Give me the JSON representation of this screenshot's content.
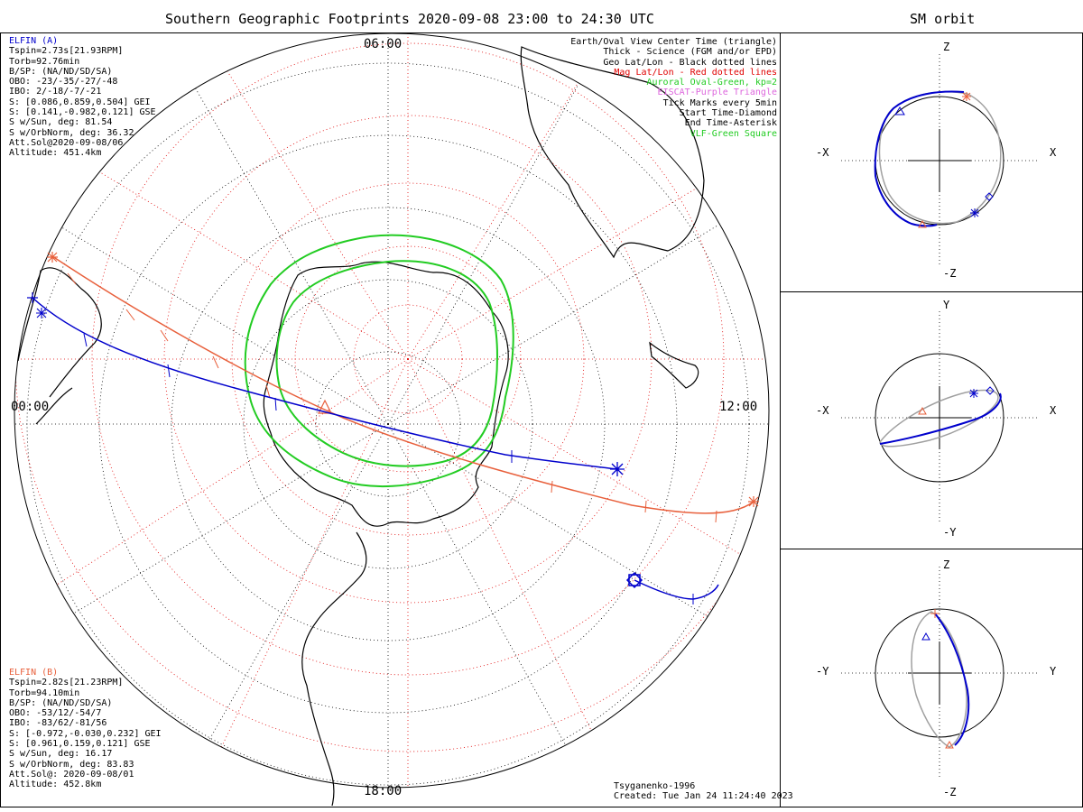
{
  "main_title": "Southern Geographic Footprints 2020-09-08 23:00 to 24:30 UTC",
  "sm_title": "SM orbit",
  "time_labels": {
    "top": "06:00",
    "left": "00:00",
    "right": "12:00",
    "bottom": "18:00"
  },
  "sat_a": {
    "name": "ELFIN (A)",
    "color": "#0000cc",
    "lines": [
      "Tspin=2.73s[21.93RPM]",
      "Torb=92.76min",
      "B/SP: (NA/ND/SD/SA)",
      "OBO: -23/-35/-27/-48",
      "IBO: 2/-18/-7/-21",
      "S: [0.086,0.859,0.504] GEI",
      "S: [0.141,-0.982,0.121] GSE",
      "S w/Sun, deg: 81.54",
      "S w/OrbNorm, deg: 36.32",
      "Att.Sol@2020-09-08/06",
      "Altitude: 451.4km"
    ]
  },
  "sat_b": {
    "name": "ELFIN (B)",
    "color": "#e8603c",
    "lines": [
      "Tspin=2.82s[21.23RPM]",
      "Torb=94.10min",
      "B/SP: (NA/ND/SD/SA)",
      "OBO: -53/12/-54/7",
      "IBO: -83/62/-81/56",
      "S: [-0.972,-0.030,0.232] GEI",
      "S: [0.961,0.159,0.121] GSE",
      "S w/Sun, deg: 16.17",
      "S w/OrbNorm, deg: 83.83",
      "Att.Sol@: 2020-09-08/01",
      "Altitude: 452.8km"
    ]
  },
  "legend": [
    {
      "text": "Earth/Oval View Center Time (triangle)",
      "color": "#000000"
    },
    {
      "text": "Thick - Science (FGM and/or EPD)",
      "color": "#000000"
    },
    {
      "text": "Geo Lat/Lon - Black dotted lines",
      "color": "#000000"
    },
    {
      "text": "Mag Lat/Lon - Red dotted lines",
      "color": "#e00000"
    },
    {
      "text": "Auroral Oval-Green, kp=2",
      "color": "#22cc22"
    },
    {
      "text": "EISCAT-Purple Triangle",
      "color": "#dd66dd"
    },
    {
      "text": "Tick Marks every 5min",
      "color": "#000000"
    },
    {
      "text": "Start Time-Diamond",
      "color": "#000000"
    },
    {
      "text": "End Time-Asterisk",
      "color": "#000000"
    },
    {
      "text": "VLF-Green Square",
      "color": "#22cc22"
    }
  ],
  "credits": {
    "model": "Tsyganenko-1996",
    "created": "Created: Tue Jan 24 11:24:40 2023"
  },
  "sm_panels": [
    {
      "top": "Z",
      "bottom": "-Z",
      "left": "-X",
      "right": "X"
    },
    {
      "top": "Y",
      "bottom": "-Y",
      "left": "-X",
      "right": "X"
    },
    {
      "top": "Z",
      "bottom": "-Z",
      "left": "-Y",
      "right": "Y"
    }
  ],
  "colors": {
    "sat_a": "#0000cc",
    "sat_b": "#e8603c",
    "auroral_oval": "#22cc22",
    "mag_grid": "#e00000",
    "sm_full_orbit": "#a0a0a0"
  }
}
